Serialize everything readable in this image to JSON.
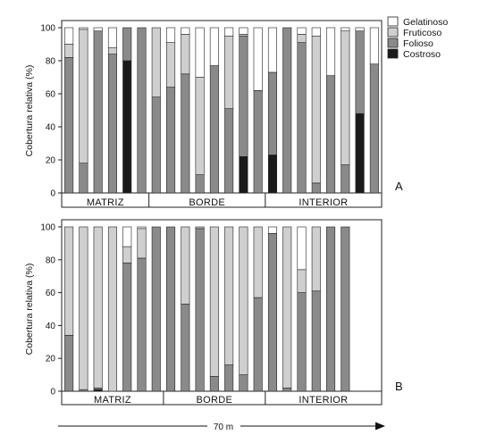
{
  "legend": {
    "placement": "top-right",
    "items": [
      {
        "key": "gelatinoso",
        "label": "Gelatinoso",
        "color": "#ffffff"
      },
      {
        "key": "fruticoso",
        "label": "Fruticoso",
        "color": "#cfcfcf"
      },
      {
        "key": "folioso",
        "label": "Folioso",
        "color": "#8a8a8a"
      },
      {
        "key": "costroso",
        "label": "Costroso",
        "color": "#1a1a1a"
      }
    ]
  },
  "transect": {
    "label": "70 m"
  },
  "chart_data": [
    {
      "panel_label": "A",
      "type": "bar",
      "stacked": true,
      "ylabel": "Cobertura relativa (%)",
      "ylim": [
        0,
        100
      ],
      "yticks": [
        "0",
        "20",
        "40",
        "60",
        "80",
        "100"
      ],
      "zones": [
        {
          "label": "MATRIZ",
          "bars": 6
        },
        {
          "label": "BORDE",
          "bars": 8
        },
        {
          "label": "INTERIOR",
          "bars": 8
        }
      ],
      "series": [
        {
          "name": "Costroso",
          "values": [
            0,
            0,
            0,
            0,
            80,
            0,
            0,
            0,
            0,
            0,
            0,
            0,
            22,
            0,
            23,
            0,
            0,
            0,
            0,
            0,
            48,
            0
          ]
        },
        {
          "name": "Folioso",
          "values": [
            82,
            18,
            98,
            84,
            20,
            100,
            58,
            64,
            72,
            11,
            77,
            51,
            73,
            62,
            50,
            100,
            91,
            6,
            71,
            17,
            50,
            78
          ]
        },
        {
          "name": "Fruticoso",
          "values": [
            8,
            81,
            0,
            4,
            0,
            0,
            42,
            27,
            24,
            59,
            0,
            44,
            1,
            0,
            0,
            0,
            5,
            89,
            0,
            81,
            0,
            0
          ]
        },
        {
          "name": "Gelatinoso",
          "values": [
            10,
            1,
            2,
            12,
            0,
            0,
            0,
            9,
            4,
            30,
            23,
            5,
            4,
            38,
            27,
            0,
            4,
            5,
            29,
            2,
            2,
            22
          ]
        }
      ]
    },
    {
      "panel_label": "B",
      "type": "bar",
      "stacked": true,
      "ylabel": "Cobertura relativa (%)",
      "ylim": [
        0,
        100
      ],
      "yticks": [
        "0",
        "20",
        "40",
        "60",
        "80",
        "100"
      ],
      "zones": [
        {
          "label": "MATRIZ",
          "bars": 7
        },
        {
          "label": "BORDE",
          "bars": 7
        },
        {
          "label": "INTERIOR",
          "bars": 8
        }
      ],
      "series": [
        {
          "name": "Costroso",
          "values": [
            0,
            0,
            1,
            0,
            0,
            0,
            0,
            0,
            0,
            0,
            0,
            0,
            0,
            0,
            0,
            0,
            0,
            0,
            0,
            0,
            0,
            0
          ]
        },
        {
          "name": "Folioso",
          "values": [
            34,
            1,
            1,
            0,
            78,
            81,
            100,
            100,
            53,
            99,
            9,
            16,
            10,
            57,
            96,
            2,
            60,
            61,
            100,
            100,
            0,
            0
          ]
        },
        {
          "name": "Fruticoso",
          "values": [
            66,
            99,
            98,
            100,
            10,
            18,
            0,
            0,
            47,
            1,
            91,
            84,
            90,
            43,
            0,
            98,
            14,
            39,
            0,
            0,
            0,
            0
          ]
        },
        {
          "name": "Gelatinoso",
          "values": [
            0,
            0,
            0,
            0,
            12,
            1,
            0,
            0,
            0,
            0,
            0,
            0,
            0,
            0,
            4,
            0,
            26,
            0,
            0,
            0,
            0,
            0
          ]
        }
      ]
    }
  ]
}
